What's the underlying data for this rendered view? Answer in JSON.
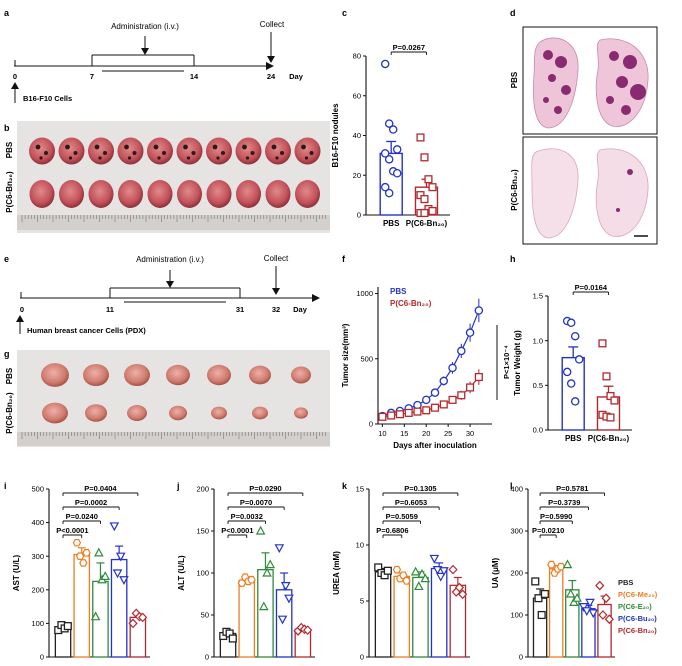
{
  "panels": {
    "a": {
      "label": "a",
      "admin_label": "Administration (i.v.)",
      "collect_label": "Collect",
      "ticks": [
        "0",
        "7",
        "14",
        "24"
      ],
      "day_label": "Day",
      "cells_label": "B16-F10 Cells"
    },
    "b": {
      "label": "b",
      "row1": "PBS",
      "row2": "P(C6-Bn₂₀)"
    },
    "c": {
      "label": "c",
      "pvalue": "P=0.0267"
    },
    "d": {
      "label": "d",
      "row1": "PBS",
      "row2": "P(C6-Bn₂₀)"
    },
    "e": {
      "label": "e",
      "admin_label": "Administration (i.v.)",
      "collect_label": "Collect",
      "ticks": [
        "0",
        "11",
        "31",
        "32"
      ],
      "day_label": "Day",
      "cells_label": "Human breast cancer Cells (PDX)"
    },
    "f": {
      "label": "f",
      "series_labels": [
        "PBS",
        "P(C6-Bn₂₀)"
      ],
      "sig_label": "P<1×10⁻⁴"
    },
    "g": {
      "label": "g",
      "row1": "PBS",
      "row2": "P(C6-Bn₂₀)"
    },
    "h": {
      "label": "h",
      "pvalue": "P=0.0164"
    },
    "i": {
      "label": "i",
      "pvalues": [
        "P=0.0404",
        "P=0.0002",
        "P=0.0240",
        "P<0.0001"
      ]
    },
    "j": {
      "label": "j",
      "pvalues": [
        "P=0.0290",
        "P=0.0070",
        "P=0.0032",
        "P<0.0001"
      ]
    },
    "k": {
      "label": "k",
      "pvalues": [
        "P=0.1305",
        "P=0.6053",
        "P=0.5059",
        "P=0.6806"
      ]
    },
    "l": {
      "label": "l",
      "pvalues": [
        "P=0.5781",
        "P=0.3739",
        "P=0.5990",
        "P=0.0210"
      ]
    }
  },
  "legend": {
    "items": [
      "PBS",
      "P(C6-Me₂₀)",
      "P(C6-E₂₀)",
      "P(C6-Bu₂₀)",
      "P(C6-Bn₂₀)"
    ],
    "colors": [
      "#222222",
      "#ee7d22",
      "#2e8b3a",
      "#2333c8",
      "#b3282d"
    ]
  },
  "colors": {
    "pbs": "#2333c8",
    "treated": "#b3282d"
  },
  "chart_data": [
    {
      "id": "c",
      "type": "bar",
      "title": "",
      "ylabel": "B16-F10 nodules",
      "xlabel": "",
      "ylim": [
        0,
        80
      ],
      "yticks": [
        0,
        20,
        40,
        60,
        80
      ],
      "categories": [
        "PBS",
        "P(C6-Bn₂₀)"
      ],
      "series": [
        {
          "name": "PBS",
          "mean": 31,
          "sem": 6,
          "points": [
            76,
            46,
            43,
            33,
            31,
            28,
            22,
            21,
            14,
            11
          ]
        },
        {
          "name": "P(C6-Bn₂₀)",
          "mean": 14,
          "sem": 4,
          "points": [
            39,
            29,
            18,
            14,
            10,
            8,
            3,
            2,
            1,
            1
          ]
        }
      ]
    },
    {
      "id": "f",
      "type": "line",
      "title": "",
      "ylabel": "Tumor size(mm³)",
      "xlabel": "Days after inoculation",
      "xlim": [
        9,
        35
      ],
      "ylim": [
        0,
        1050
      ],
      "xticks": [
        10,
        15,
        20,
        25,
        30
      ],
      "yticks": [
        0,
        500,
        1000
      ],
      "x": [
        10,
        12,
        14,
        16,
        18,
        20,
        22,
        24,
        26,
        28,
        30,
        32
      ],
      "series": [
        {
          "name": "PBS",
          "values": [
            60,
            85,
            100,
            120,
            145,
            185,
            240,
            330,
            430,
            560,
            700,
            870
          ],
          "err": [
            15,
            15,
            15,
            20,
            20,
            25,
            30,
            35,
            45,
            55,
            70,
            90
          ]
        },
        {
          "name": "P(C6-Bn₂₀)",
          "values": [
            55,
            65,
            75,
            85,
            95,
            105,
            125,
            150,
            185,
            220,
            280,
            360
          ],
          "err": [
            10,
            10,
            15,
            15,
            15,
            20,
            20,
            25,
            30,
            35,
            45,
            60
          ]
        }
      ]
    },
    {
      "id": "h",
      "type": "bar",
      "title": "",
      "ylabel": "Tumor Weight (g)",
      "xlabel": "",
      "ylim": [
        0,
        1.5
      ],
      "yticks": [
        0,
        0.5,
        1.0,
        1.5
      ],
      "categories": [
        "PBS",
        "P(C6-Bn₂₀)"
      ],
      "series": [
        {
          "name": "PBS",
          "mean": 0.81,
          "sem": 0.12,
          "points": [
            1.22,
            1.2,
            1.05,
            0.79,
            0.65,
            0.52,
            0.32
          ]
        },
        {
          "name": "P(C6-Bn₂₀)",
          "mean": 0.37,
          "sem": 0.12,
          "points": [
            0.97,
            0.6,
            0.38,
            0.33,
            0.17,
            0.15,
            0.14
          ]
        }
      ]
    },
    {
      "id": "i",
      "type": "bar",
      "ylabel": "AST (U/L)",
      "ylim": [
        0,
        500
      ],
      "yticks": [
        0,
        100,
        200,
        300,
        400,
        500
      ],
      "categories": [
        "PBS",
        "P(C6-Me₂₀)",
        "P(C6-E₂₀)",
        "P(C6-Bu₂₀)",
        "P(C6-Bn₂₀)"
      ],
      "means": [
        88,
        305,
        225,
        290,
        118
      ],
      "sems": [
        8,
        20,
        55,
        40,
        10
      ],
      "points": [
        [
          80,
          95,
          85,
          92
        ],
        [
          340,
          300,
          280,
          310
        ],
        [
          120,
          310,
          230,
          240
        ],
        [
          390,
          250,
          300,
          230
        ],
        [
          100,
          130,
          120,
          118
        ]
      ]
    },
    {
      "id": "j",
      "type": "bar",
      "ylabel": "ALT (U/L)",
      "ylim": [
        0,
        200
      ],
      "yticks": [
        0,
        50,
        100,
        150,
        200
      ],
      "categories": [
        "PBS",
        "P(C6-Me₂₀)",
        "P(C6-E₂₀)",
        "P(C6-Bu₂₀)",
        "P(C6-Bn₂₀)"
      ],
      "means": [
        28,
        91,
        104,
        80,
        33
      ],
      "sems": [
        3,
        4,
        20,
        20,
        2
      ],
      "points": [
        [
          25,
          30,
          28,
          22
        ],
        [
          88,
          95,
          90,
          92
        ],
        [
          150,
          60,
          100,
          110
        ],
        [
          130,
          45,
          85,
          70
        ],
        [
          31,
          35,
          33,
          32
        ]
      ]
    },
    {
      "id": "k",
      "type": "bar",
      "ylabel": "UREA (mM)",
      "ylim": [
        0,
        15
      ],
      "yticks": [
        0,
        5,
        10,
        15
      ],
      "categories": [
        "PBS",
        "P(C6-Me₂₀)",
        "P(C6-E₂₀)",
        "P(C6-Bu₂₀)",
        "P(C6-Bn₂₀)"
      ],
      "means": [
        7.6,
        7.2,
        7.1,
        7.9,
        6.4
      ],
      "sems": [
        0.3,
        0.3,
        0.5,
        0.5,
        0.7
      ],
      "points": [
        [
          8.0,
          7.5,
          7.3,
          7.7
        ],
        [
          7.8,
          7.0,
          7.3,
          6.8
        ],
        [
          7.6,
          6.3,
          7.4,
          7.0
        ],
        [
          8.8,
          7.8,
          7.2,
          7.7
        ],
        [
          7.8,
          5.8,
          6.2,
          5.6
        ]
      ]
    },
    {
      "id": "l",
      "type": "bar",
      "ylabel": "UA (μM)",
      "ylim": [
        0,
        400
      ],
      "yticks": [
        0,
        100,
        200,
        300,
        400
      ],
      "categories": [
        "PBS",
        "P(C6-Me₂₀)",
        "P(C6-E₂₀)",
        "P(C6-Bu₂₀)",
        "P(C6-Bn₂₀)"
      ],
      "means": [
        140,
        210,
        160,
        115,
        125
      ],
      "sems": [
        22,
        8,
        22,
        8,
        20
      ],
      "points": [
        [
          180,
          140,
          100,
          150
        ],
        [
          220,
          200,
          210,
          215
        ],
        [
          220,
          150,
          130,
          140
        ],
        [
          120,
          110,
          130,
          105
        ],
        [
          170,
          100,
          140,
          90
        ]
      ]
    }
  ]
}
